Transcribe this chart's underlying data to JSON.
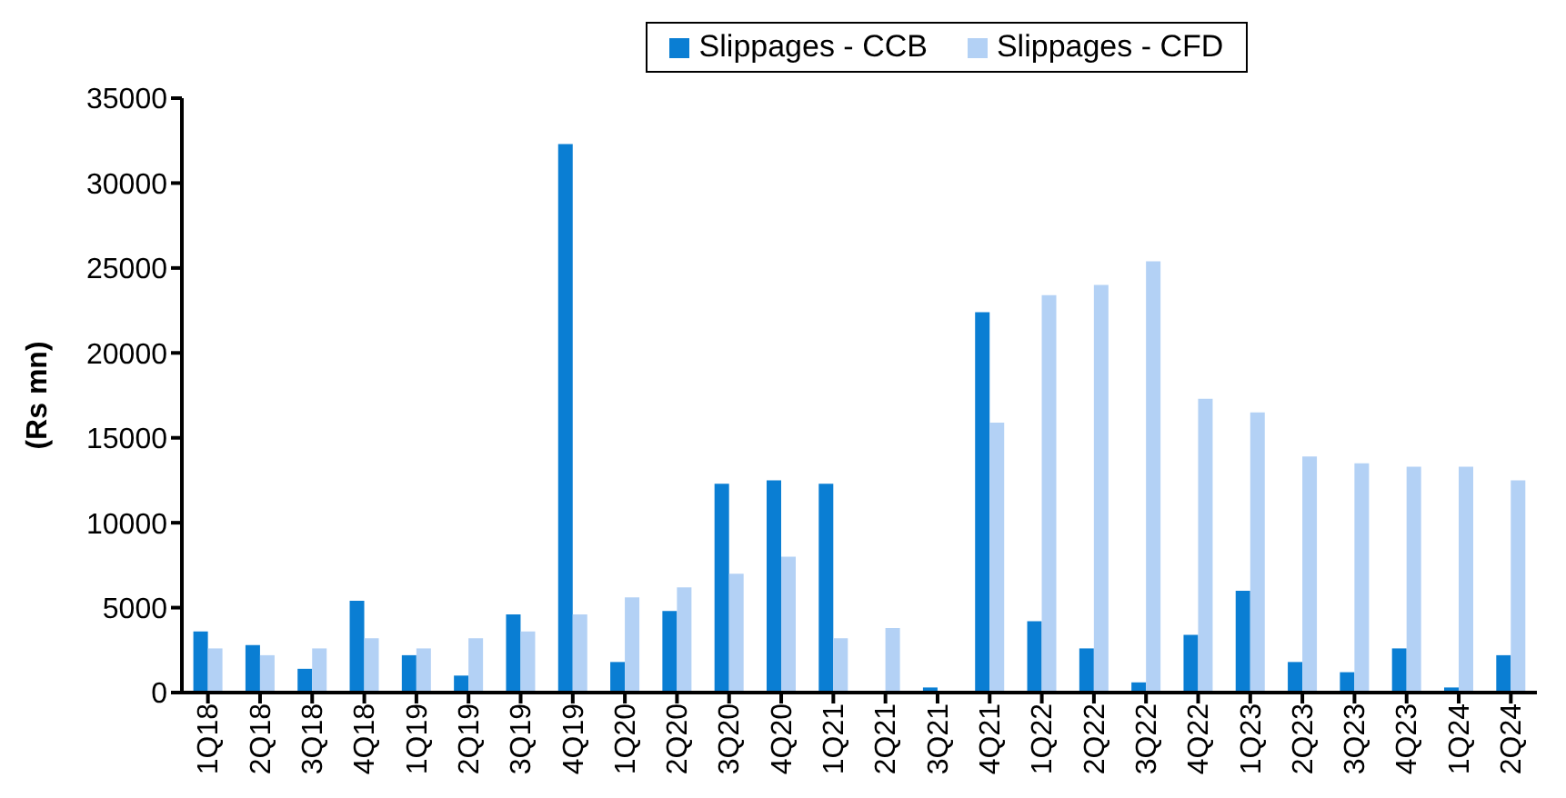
{
  "chart_data": {
    "type": "bar",
    "ylabel": "(Rs mn)",
    "categories": [
      "1Q18",
      "2Q18",
      "3Q18",
      "4Q18",
      "1Q19",
      "2Q19",
      "3Q19",
      "4Q19",
      "1Q20",
      "2Q20",
      "3Q20",
      "4Q20",
      "1Q21",
      "2Q21",
      "3Q21",
      "4Q21",
      "1Q22",
      "2Q22",
      "3Q22",
      "4Q22",
      "1Q23",
      "2Q23",
      "3Q23",
      "4Q23",
      "1Q24",
      "2Q24"
    ],
    "series": [
      {
        "name": "Slippages - CCB",
        "color": "#0a7ed3",
        "values": [
          3600,
          2800,
          1400,
          5400,
          2200,
          1000,
          4600,
          32300,
          1800,
          4800,
          12300,
          12500,
          12300,
          100,
          300,
          22400,
          4200,
          2600,
          600,
          3400,
          6000,
          1800,
          1200,
          2600,
          300,
          2200
        ]
      },
      {
        "name": "Slippages - CFD",
        "color": "#b3d1f5",
        "values": [
          2600,
          2200,
          2600,
          3200,
          2600,
          3200,
          3600,
          4600,
          5600,
          6200,
          7000,
          8000,
          3200,
          3800,
          0,
          15900,
          23400,
          24000,
          25400,
          17300,
          16500,
          13900,
          13500,
          13300,
          13300,
          12500
        ]
      }
    ],
    "ylim": [
      0,
      35000
    ],
    "yticks": [
      0,
      5000,
      10000,
      15000,
      20000,
      25000,
      30000,
      35000
    ],
    "grid": false,
    "legend": "top"
  }
}
